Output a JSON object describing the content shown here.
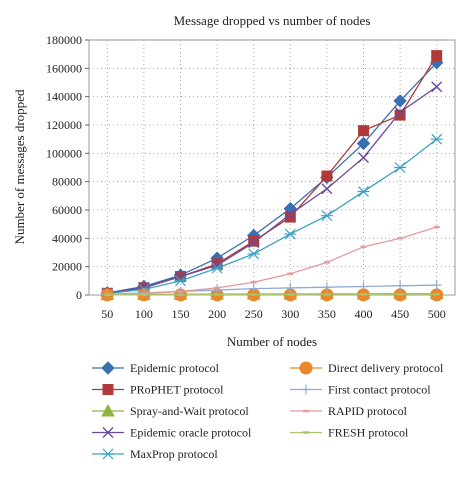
{
  "chart_data": {
    "type": "line",
    "title": "Message dropped vs number of nodes",
    "xlabel": "Number of nodes",
    "ylabel": "Number of messages dropped",
    "x": [
      50,
      100,
      150,
      200,
      250,
      300,
      350,
      400,
      450,
      500
    ],
    "ylim": [
      0,
      180000
    ],
    "yticks": [
      0,
      20000,
      40000,
      60000,
      80000,
      100000,
      120000,
      140000,
      160000,
      180000
    ],
    "grid": true,
    "legend_position": "bottom",
    "series": [
      {
        "name": "Epidemic protocol",
        "color": "#3a6fb0",
        "marker": "diamond",
        "values": [
          1500,
          6000,
          14000,
          26000,
          42000,
          61000,
          83000,
          107000,
          137000,
          164000
        ]
      },
      {
        "name": "PRoPHET protocol",
        "color": "#b03a3a",
        "marker": "square",
        "values": [
          1200,
          5000,
          13000,
          22000,
          38000,
          55000,
          84000,
          116000,
          127000,
          169000
        ]
      },
      {
        "name": "Spray-and-Wait protocol",
        "color": "#8db53a",
        "marker": "triangle",
        "values": [
          300,
          400,
          500,
          600,
          700,
          700,
          800,
          800,
          900,
          900
        ]
      },
      {
        "name": "Epidemic oracle protocol",
        "color": "#6a4a9a",
        "marker": "x",
        "values": [
          1400,
          5500,
          13000,
          21000,
          37000,
          57000,
          75000,
          97000,
          129000,
          147000
        ]
      },
      {
        "name": "MaxProp protocol",
        "color": "#3aa3c4",
        "marker": "asterisk",
        "values": [
          1000,
          4000,
          10000,
          19000,
          29000,
          43000,
          56000,
          73000,
          90000,
          110000
        ]
      },
      {
        "name": "Direct delivery protocol",
        "color": "#e8882a",
        "marker": "circle",
        "values": [
          100,
          100,
          100,
          100,
          100,
          100,
          100,
          100,
          100,
          100
        ]
      },
      {
        "name": "First contact protocol",
        "color": "#8faad8",
        "marker": "plus",
        "values": [
          500,
          1500,
          2500,
          3500,
          4500,
          5000,
          5500,
          6000,
          6500,
          7000
        ]
      },
      {
        "name": "RAPID protocol",
        "color": "#e39b9b",
        "marker": "dash",
        "values": [
          300,
          1000,
          2500,
          5000,
          9000,
          15000,
          23000,
          34000,
          40000,
          48000
        ]
      },
      {
        "name": "FRESH protocol",
        "color": "#a9c46a",
        "marker": "dash",
        "values": [
          100,
          150,
          200,
          250,
          300,
          350,
          400,
          450,
          500,
          550
        ]
      }
    ]
  }
}
